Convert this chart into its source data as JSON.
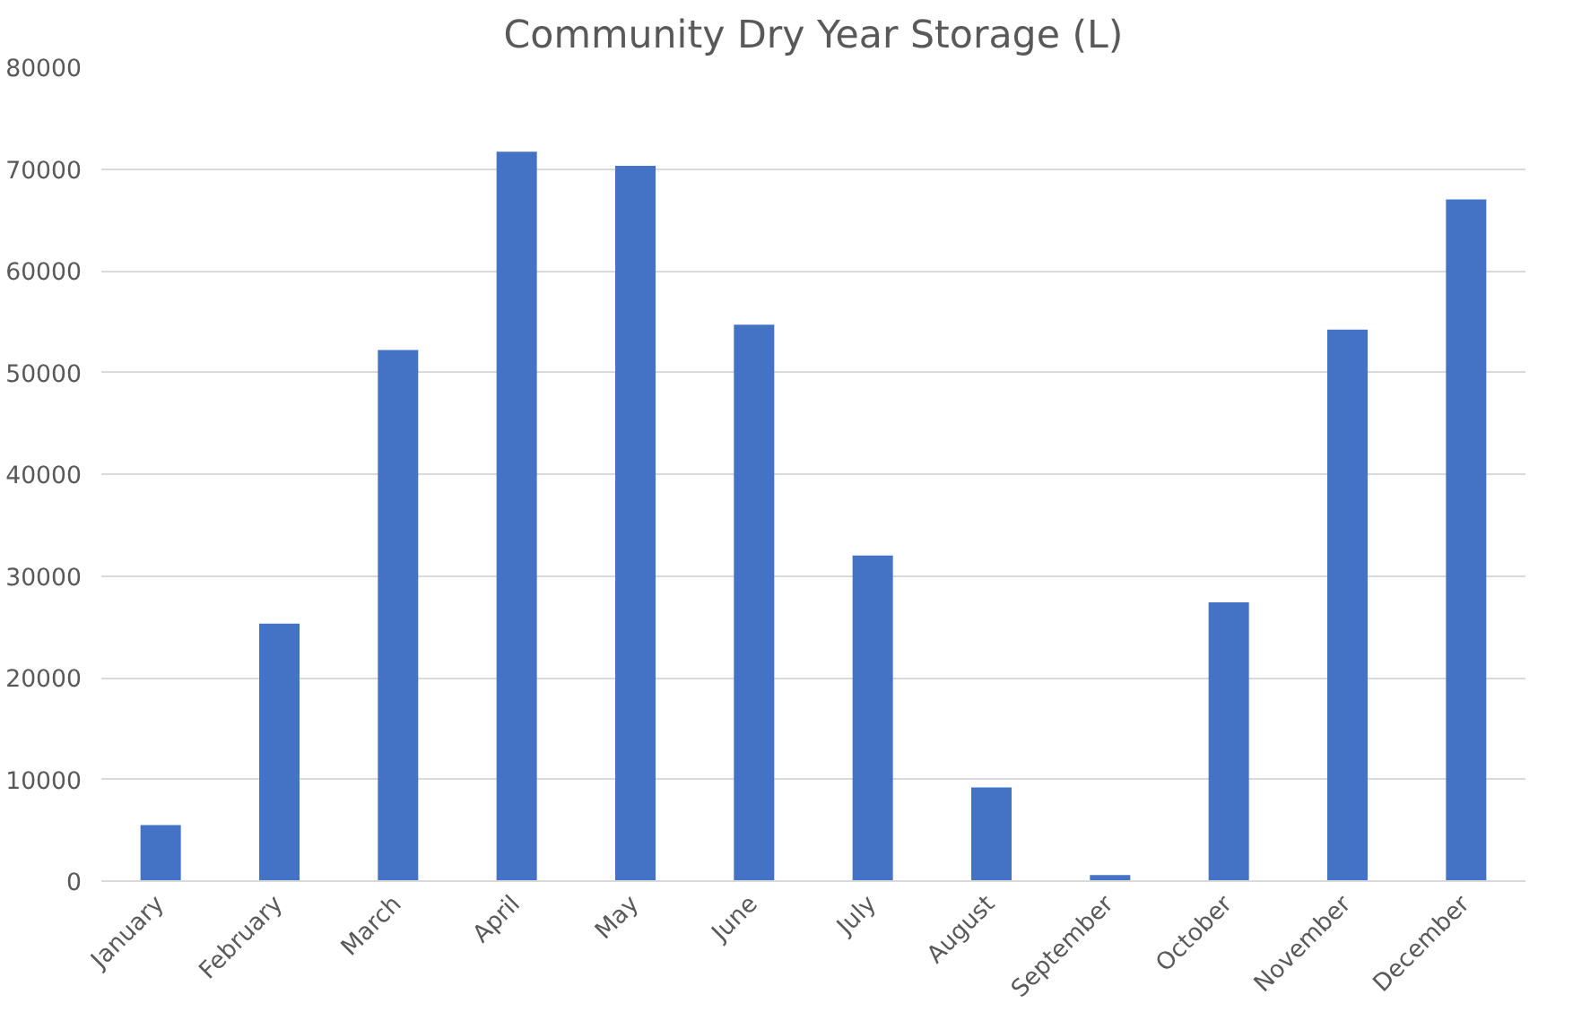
{
  "chart_data": {
    "type": "bar",
    "title": "Community Dry Year Storage (L)",
    "categories": [
      "January",
      "February",
      "March",
      "April",
      "May",
      "June",
      "July",
      "August",
      "September",
      "October",
      "November",
      "December"
    ],
    "values": [
      5500,
      25300,
      52200,
      71700,
      70300,
      54700,
      32000,
      9200,
      600,
      27400,
      54200,
      67000
    ],
    "color": "#4472c4",
    "ylim": [
      0,
      80000
    ],
    "yticks": [
      0,
      10000,
      20000,
      30000,
      40000,
      50000,
      60000,
      70000,
      80000
    ],
    "grid": "y"
  }
}
